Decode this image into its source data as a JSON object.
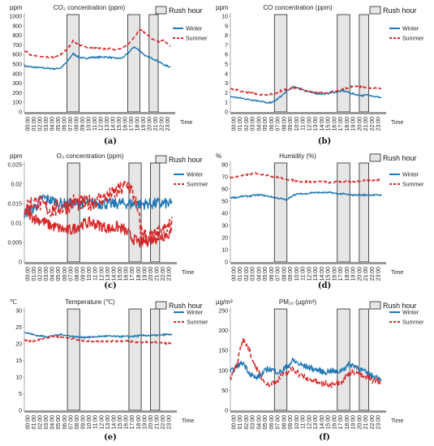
{
  "colors": {
    "winter": "#1f77b4",
    "summer": "#d62728",
    "rush_fill": "#e6e6e6",
    "rush_stroke": "#222222",
    "axis": "#9a9a9a"
  },
  "common": {
    "x_ticks": [
      "00:00",
      "01:00",
      "02:00",
      "03:00",
      "04:00",
      "05:00",
      "06:00",
      "07:00",
      "08:00",
      "09:00",
      "10:00",
      "11:00",
      "12:00",
      "13:00",
      "14:00",
      "15:00",
      "16:00",
      "17:00",
      "18:00",
      "19:00",
      "20:00",
      "21:00",
      "22:00",
      "23:00"
    ],
    "xlabel": "Time",
    "legend": [
      "Winter",
      "Summer"
    ],
    "rush_label": "Rush hour",
    "rush_windows": [
      [
        7,
        9
      ],
      [
        17,
        19
      ],
      [
        20.5,
        22
      ]
    ]
  },
  "chart_data": [
    {
      "id": "a",
      "type": "line",
      "panel_label": "(a)",
      "title": "CO₂ concentration (ppm)",
      "ylabel": "ppm",
      "ylim": [
        0,
        1000
      ],
      "yticks": [
        0,
        100,
        200,
        300,
        400,
        500,
        600,
        700,
        800,
        900,
        1000
      ],
      "x": [
        0,
        1,
        2,
        3,
        4,
        5,
        6,
        7,
        8,
        9,
        10,
        11,
        12,
        13,
        14,
        15,
        16,
        17,
        18,
        19,
        20,
        21,
        22,
        23,
        24
      ],
      "series": [
        {
          "name": "Winter",
          "style": "solid",
          "values": [
            480,
            470,
            465,
            460,
            455,
            450,
            460,
            520,
            610,
            570,
            560,
            570,
            570,
            575,
            570,
            560,
            560,
            610,
            680,
            640,
            580,
            560,
            530,
            490,
            470
          ]
        },
        {
          "name": "Summer",
          "style": "dashed",
          "values": [
            640,
            600,
            580,
            575,
            570,
            570,
            600,
            650,
            740,
            700,
            680,
            670,
            665,
            660,
            660,
            650,
            660,
            700,
            780,
            860,
            820,
            760,
            730,
            750,
            680
          ]
        }
      ]
    },
    {
      "id": "b",
      "type": "line",
      "panel_label": "(b)",
      "title": "CO concentration (ppm)",
      "ylabel": "ppm",
      "ylim": [
        0,
        10
      ],
      "yticks": [
        0,
        1,
        2,
        3,
        4,
        5,
        6,
        7,
        8,
        9,
        10
      ],
      "x": [
        0,
        1,
        2,
        3,
        4,
        5,
        6,
        7,
        8,
        9,
        10,
        11,
        12,
        13,
        14,
        15,
        16,
        17,
        18,
        19,
        20,
        21,
        22,
        23,
        24
      ],
      "series": [
        {
          "name": "Winter",
          "style": "solid",
          "values": [
            1.6,
            1.5,
            1.4,
            1.3,
            1.2,
            1.1,
            0.9,
            1.1,
            1.6,
            2.2,
            2.6,
            2.5,
            2.2,
            2.0,
            1.9,
            1.9,
            2.0,
            2.1,
            2.2,
            2.0,
            1.8,
            1.7,
            1.8,
            1.6,
            1.5
          ]
        },
        {
          "name": "Summer",
          "style": "dashed",
          "values": [
            2.4,
            2.3,
            2.1,
            2.0,
            1.9,
            1.8,
            1.8,
            1.9,
            2.2,
            2.4,
            2.5,
            2.4,
            2.2,
            2.1,
            2.0,
            2.0,
            2.1,
            2.2,
            2.4,
            2.6,
            2.7,
            2.6,
            2.5,
            2.5,
            2.4
          ]
        }
      ]
    },
    {
      "id": "c",
      "type": "line",
      "panel_label": "(c)",
      "title": "O₃ concentration (ppm)",
      "ylabel": "ppm",
      "ylim": [
        0,
        0.025
      ],
      "yticks": [
        0,
        0.005,
        0.01,
        0.015,
        0.02,
        0.025
      ],
      "x": [
        0,
        1,
        2,
        3,
        4,
        5,
        6,
        7,
        8,
        9,
        10,
        11,
        12,
        13,
        14,
        15,
        16,
        17,
        18,
        19,
        20,
        21,
        22,
        23,
        24
      ],
      "series": [
        {
          "name": "Winter",
          "style": "solid",
          "values": [
            0.0125,
            0.013,
            0.0145,
            0.0165,
            0.016,
            0.0155,
            0.015,
            0.015,
            0.015,
            0.0152,
            0.015,
            0.015,
            0.015,
            0.015,
            0.0148,
            0.015,
            0.015,
            0.015,
            0.015,
            0.0148,
            0.015,
            0.015,
            0.015,
            0.015,
            0.0148
          ]
        },
        {
          "name": "Summer",
          "style": "solid",
          "values": [
            0.013,
            0.012,
            0.011,
            0.0105,
            0.0095,
            0.009,
            0.0085,
            0.008,
            0.0085,
            0.0095,
            0.01,
            0.01,
            0.0095,
            0.009,
            0.0085,
            0.009,
            0.0085,
            0.007,
            0.0055,
            0.005,
            0.0055,
            0.006,
            0.0065,
            0.007,
            0.0075
          ]
        },
        {
          "name": "Summer",
          "style": "dashed",
          "values": [
            0.014,
            0.015,
            0.0155,
            0.0145,
            0.0135,
            0.0135,
            0.014,
            0.0145,
            0.0155,
            0.015,
            0.015,
            0.0155,
            0.016,
            0.0165,
            0.017,
            0.018,
            0.019,
            0.02,
            0.016,
            0.008,
            0.006,
            0.0065,
            0.007,
            0.0085,
            0.0095
          ]
        }
      ]
    },
    {
      "id": "d",
      "type": "line",
      "panel_label": "(d)",
      "title": "Humidity (%)",
      "ylabel": "%",
      "ylim": [
        0,
        80
      ],
      "yticks": [
        0,
        10,
        20,
        30,
        40,
        50,
        60,
        70,
        80
      ],
      "x": [
        0,
        1,
        2,
        3,
        4,
        5,
        6,
        7,
        8,
        9,
        10,
        11,
        12,
        13,
        14,
        15,
        16,
        17,
        18,
        19,
        20,
        21,
        22,
        23,
        24
      ],
      "series": [
        {
          "name": "Winter",
          "style": "solid",
          "values": [
            53,
            53,
            54,
            54,
            55,
            55,
            54,
            53,
            52,
            51,
            55,
            56,
            56,
            57,
            57,
            57,
            57,
            56,
            56,
            55,
            55,
            55,
            55,
            55,
            55
          ]
        },
        {
          "name": "Summer",
          "style": "dashed",
          "values": [
            69,
            70,
            71,
            72,
            73,
            72,
            71,
            70,
            69,
            68,
            67,
            66,
            66,
            66,
            66,
            66,
            65,
            66,
            66,
            66,
            66,
            67,
            67,
            67,
            68
          ]
        }
      ]
    },
    {
      "id": "e",
      "type": "line",
      "panel_label": "(e)",
      "title": "Temperature (℃)",
      "ylabel": "℃",
      "ylim": [
        0,
        30
      ],
      "yticks": [
        0,
        5,
        10,
        15,
        20,
        25,
        30
      ],
      "x": [
        0,
        1,
        2,
        3,
        4,
        5,
        6,
        7,
        8,
        9,
        10,
        11,
        12,
        13,
        14,
        15,
        16,
        17,
        18,
        19,
        20,
        21,
        22,
        23,
        24
      ],
      "series": [
        {
          "name": "Winter",
          "style": "solid",
          "values": [
            23.5,
            23,
            22.5,
            22.3,
            22.2,
            22.5,
            22.8,
            22.5,
            22.2,
            22,
            22,
            22,
            22.2,
            22.3,
            22.3,
            22.2,
            22.2,
            22.2,
            22.3,
            22.5,
            22.5,
            22.5,
            22.6,
            22.8,
            22.8
          ]
        },
        {
          "name": "Summer",
          "style": "dashed",
          "values": [
            21,
            20.8,
            21,
            21.5,
            22,
            22.3,
            22,
            21.8,
            21.5,
            21,
            20.8,
            20.8,
            20.8,
            20.8,
            20.8,
            20.8,
            20.8,
            20.8,
            20.5,
            20.5,
            20.5,
            20.5,
            20.3,
            20.2,
            20.2
          ]
        }
      ]
    },
    {
      "id": "f",
      "type": "line",
      "panel_label": "(f)",
      "title": "PM₁₀ (µg/m³)",
      "ylabel": "µg/m³",
      "ylim": [
        0,
        250
      ],
      "yticks": [
        0,
        50,
        100,
        150,
        200,
        250
      ],
      "x": [
        0,
        1,
        2,
        3,
        4,
        5,
        6,
        7,
        8,
        9,
        10,
        11,
        12,
        13,
        14,
        15,
        16,
        17,
        18,
        19,
        20,
        21,
        22,
        23,
        24
      ],
      "series": [
        {
          "name": "Winter",
          "style": "solid",
          "values": [
            95,
            110,
            120,
            95,
            80,
            90,
            105,
            100,
            95,
            110,
            125,
            115,
            110,
            105,
            100,
            95,
            100,
            95,
            105,
            115,
            110,
            100,
            90,
            85,
            80
          ]
        },
        {
          "name": "Summer",
          "style": "dashed",
          "values": [
            80,
            110,
            180,
            150,
            110,
            80,
            65,
            70,
            85,
            95,
            105,
            90,
            80,
            75,
            70,
            65,
            65,
            70,
            75,
            95,
            95,
            85,
            80,
            75,
            70
          ]
        }
      ]
    }
  ]
}
